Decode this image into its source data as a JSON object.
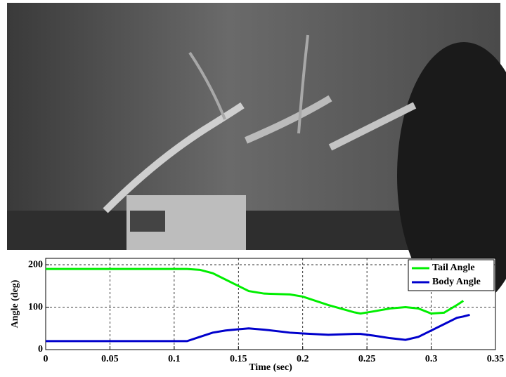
{
  "chart_data": {
    "type": "line",
    "x_label": "Time (sec)",
    "y_label": "Angle (deg)",
    "x": [
      0,
      0.05,
      0.1,
      0.11,
      0.12,
      0.13,
      0.14,
      0.15,
      0.158,
      0.17,
      0.19,
      0.2,
      0.22,
      0.24,
      0.245,
      0.255,
      0.268,
      0.28,
      0.29,
      0.3,
      0.31,
      0.32,
      0.325,
      0.33
    ],
    "series": [
      {
        "name": "Tail Angle",
        "color": "#00ee00",
        "values": [
          190,
          190,
          190,
          190,
          188,
          180,
          165,
          150,
          138,
          132,
          130,
          125,
          105,
          88,
          85,
          90,
          97,
          100,
          97,
          85,
          87,
          105,
          115,
          null
        ]
      },
      {
        "name": "Body Angle",
        "color": "#0000cc",
        "values": [
          20,
          20,
          20,
          20,
          30,
          40,
          45,
          48,
          50,
          47,
          40,
          38,
          35,
          37,
          37,
          33,
          27,
          23,
          30,
          45,
          60,
          75,
          78,
          82
        ]
      }
    ],
    "xlim": [
      0,
      0.35
    ],
    "xticks": [
      0,
      0.05,
      0.1,
      0.15,
      0.2,
      0.25,
      0.3,
      0.35
    ],
    "ylim": [
      0,
      215
    ],
    "yticks": [
      0,
      100,
      200
    ],
    "grid": true,
    "legend": "top-right"
  }
}
